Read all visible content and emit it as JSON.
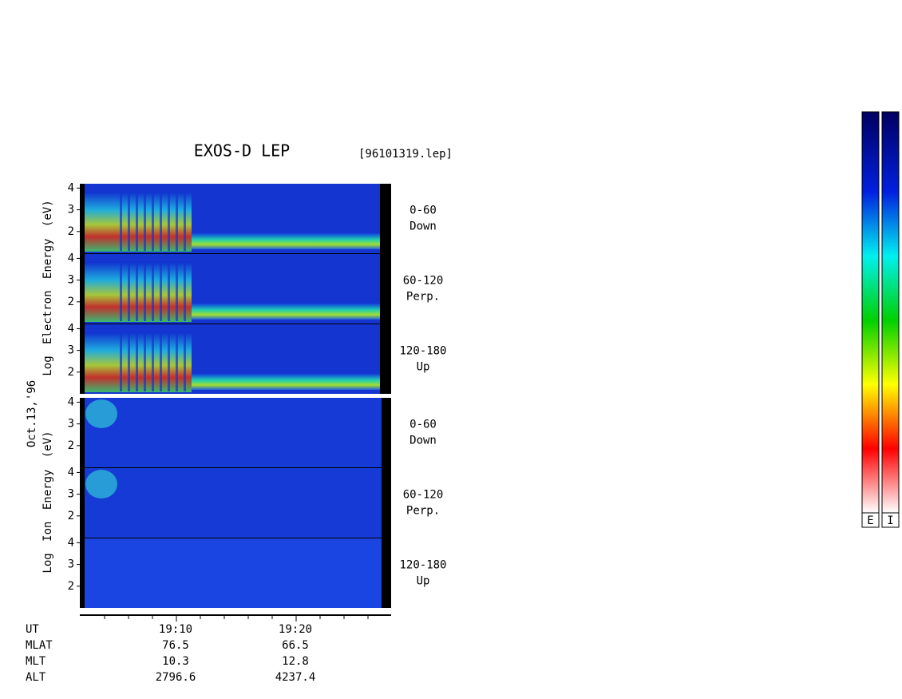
{
  "header": {
    "title": "EXOS-D LEP",
    "file": "[96101319.lep]"
  },
  "date": "Oct.13,'96",
  "groups": [
    {
      "axis_label": "Log Electron Energy (eV)",
      "panels": [
        {
          "angle": "0-60",
          "direction": "Down",
          "yticks": [
            4,
            3,
            2
          ]
        },
        {
          "angle": "60-120",
          "direction": "Perp.",
          "yticks": [
            4,
            3,
            2
          ]
        },
        {
          "angle": "120-180",
          "direction": "Up",
          "yticks": [
            4,
            3,
            2
          ]
        }
      ]
    },
    {
      "axis_label": "Log Ion Energy (eV)",
      "panels": [
        {
          "angle": "0-60",
          "direction": "Down",
          "yticks": [
            4,
            3,
            2
          ]
        },
        {
          "angle": "60-120",
          "direction": "Perp.",
          "yticks": [
            4,
            3,
            2
          ]
        },
        {
          "angle": "120-180",
          "direction": "Up",
          "yticks": [
            4,
            3,
            2
          ]
        }
      ]
    }
  ],
  "orbit": {
    "rows": [
      {
        "name": "UT",
        "values": [
          "19:10",
          "19:20"
        ]
      },
      {
        "name": "MLAT",
        "values": [
          "76.5",
          "66.5"
        ]
      },
      {
        "name": "MLT",
        "values": [
          "10.3",
          "12.8"
        ]
      },
      {
        "name": "ALT",
        "values": [
          "2796.6",
          "4237.4"
        ]
      }
    ]
  },
  "colorbars": [
    "E",
    "I"
  ]
}
